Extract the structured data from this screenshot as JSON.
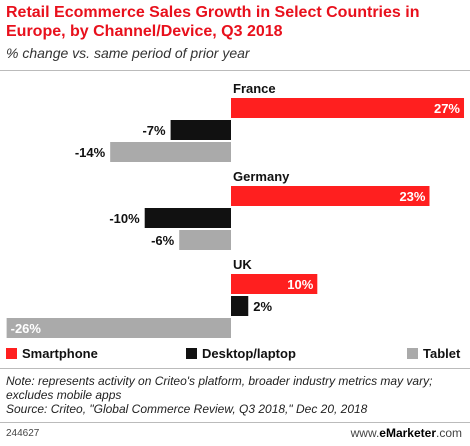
{
  "header": {
    "title": "Retail Ecommerce Sales Growth in Select Countries in Europe, by Channel/Device, Q3 2018",
    "subtitle": "% change vs. same period of prior year"
  },
  "colors": {
    "smartphone": "#ff1f1f",
    "desktop": "#111111",
    "tablet": "#aaaaaa",
    "title": "#e8101c"
  },
  "chart_data": {
    "type": "bar",
    "orientation": "horizontal",
    "categories": [
      "France",
      "Germany",
      "UK"
    ],
    "series": [
      {
        "name": "Smartphone",
        "values": [
          27,
          23,
          10
        ],
        "labels": [
          "27%",
          "23%",
          "10%"
        ]
      },
      {
        "name": "Desktop/laptop",
        "values": [
          -7,
          -10,
          2
        ],
        "labels": [
          "-7%",
          "-10%",
          "2%"
        ]
      },
      {
        "name": "Tablet",
        "values": [
          -14,
          -6,
          -26
        ],
        "labels": [
          "-14%",
          "-6%",
          "-26%"
        ]
      }
    ],
    "xlim": [
      -26,
      27
    ],
    "grid": false,
    "legend": "bottom"
  },
  "legend": {
    "smartphone": "Smartphone",
    "desktop": "Desktop/laptop",
    "tablet": "Tablet"
  },
  "footer": {
    "note": "Note: represents activity on Criteo's platform, broader industry metrics may vary; excludes mobile apps",
    "source": "Source: Criteo, \"Global Commerce Review, Q3 2018,\" Dec 20, 2018",
    "chart_id": "244627",
    "brand_prefix": "www.",
    "brand_name": "eMarketer",
    "brand_suffix": ".com"
  }
}
